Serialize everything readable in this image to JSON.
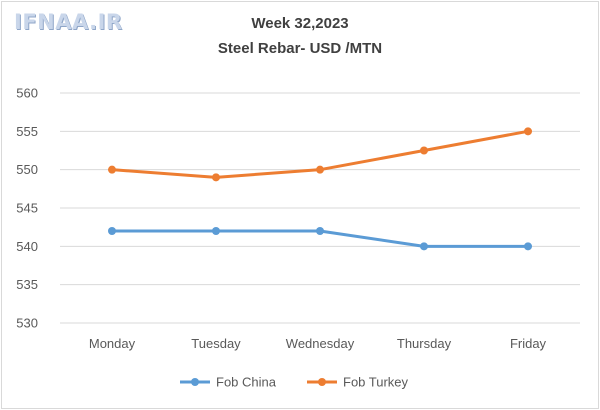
{
  "watermark": "IFNAA.IR",
  "chart_data": {
    "type": "line",
    "title": "Week 32,2023",
    "subtitle": "Steel Rebar- USD /MTN",
    "categories": [
      "Monday",
      "Tuesday",
      "Wednesday",
      "Thursday",
      "Friday"
    ],
    "series": [
      {
        "name": "Fob China",
        "color": "#5b9bd5",
        "values": [
          542,
          542,
          542,
          540,
          540
        ]
      },
      {
        "name": "Fob Turkey",
        "color": "#ed7d31",
        "values": [
          550,
          549,
          550,
          552.5,
          555
        ]
      }
    ],
    "ylim": [
      530,
      560
    ],
    "yticks": [
      530,
      535,
      540,
      545,
      550,
      555,
      560
    ],
    "grid": true,
    "legend": "bottom"
  }
}
